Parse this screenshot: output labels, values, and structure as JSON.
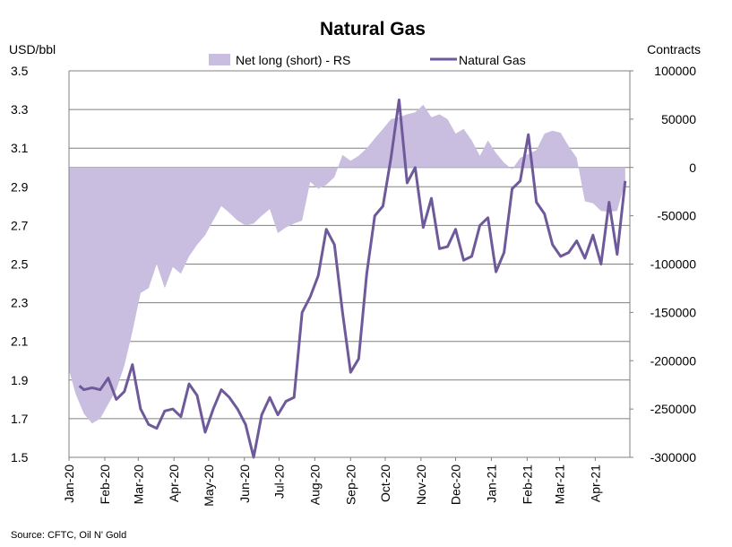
{
  "chart_data": {
    "type": "line",
    "title": "Natural Gas",
    "ylabel_left": "USD/bbl",
    "ylabel_right": "Contracts",
    "source": "Source: CFTC, Oil N' Gold",
    "ylim_left": [
      1.5,
      3.5
    ],
    "yticks_left": [
      "3.5",
      "3.3",
      "3.1",
      "2.9",
      "2.7",
      "2.5",
      "2.3",
      "2.1",
      "1.9",
      "1.7",
      "1.5"
    ],
    "ylim_right": [
      -300000,
      100000
    ],
    "yticks_right": [
      "100000",
      "50000",
      "0",
      "-50000",
      "-100000",
      "-150000",
      "-200000",
      "-250000",
      "-300000"
    ],
    "x_categories": [
      "Jan-20",
      "Feb-20",
      "Mar-20",
      "Apr-20",
      "May-20",
      "Jun-20",
      "Jul-20",
      "Aug-20",
      "Sep-20",
      "Oct-20",
      "Nov-20",
      "Dec-20",
      "Jan-21",
      "Feb-21",
      "Mar-21",
      "Apr-21"
    ],
    "grid": true,
    "legend_position": "top",
    "colors": {
      "area": "#c9bedf",
      "line": "#6e5a9a",
      "grid": "#808080"
    },
    "series": [
      {
        "name": "Net long (short) - RS",
        "type": "area",
        "axis": "right",
        "x": [
          "2020-01-01",
          "2020-01-07",
          "2020-01-14",
          "2020-01-21",
          "2020-01-28",
          "2020-02-04",
          "2020-02-11",
          "2020-02-18",
          "2020-02-25",
          "2020-03-03",
          "2020-03-10",
          "2020-03-17",
          "2020-03-24",
          "2020-03-31",
          "2020-04-07",
          "2020-04-14",
          "2020-04-21",
          "2020-04-28",
          "2020-05-05",
          "2020-05-12",
          "2020-05-19",
          "2020-05-26",
          "2020-06-02",
          "2020-06-09",
          "2020-06-16",
          "2020-06-23",
          "2020-06-30",
          "2020-07-07",
          "2020-07-14",
          "2020-07-21",
          "2020-07-28",
          "2020-08-04",
          "2020-08-11",
          "2020-08-18",
          "2020-08-25",
          "2020-09-01",
          "2020-09-08",
          "2020-09-15",
          "2020-09-22",
          "2020-09-29",
          "2020-10-06",
          "2020-10-13",
          "2020-10-20",
          "2020-10-27",
          "2020-11-03",
          "2020-11-10",
          "2020-11-17",
          "2020-11-24",
          "2020-12-01",
          "2020-12-08",
          "2020-12-15",
          "2020-12-22",
          "2020-12-29",
          "2021-01-05",
          "2021-01-12",
          "2021-01-19",
          "2021-01-26",
          "2021-02-02",
          "2021-02-09",
          "2021-02-16",
          "2021-02-23",
          "2021-03-02",
          "2021-03-09",
          "2021-03-16",
          "2021-03-23",
          "2021-03-30",
          "2021-04-06",
          "2021-04-13",
          "2021-04-20",
          "2021-04-27"
        ],
        "values": [
          -210000,
          -235000,
          -255000,
          -265000,
          -260000,
          -245000,
          -230000,
          -205000,
          -170000,
          -130000,
          -125000,
          -100000,
          -125000,
          -103000,
          -110000,
          -92000,
          -80000,
          -70000,
          -55000,
          -40000,
          -47000,
          -55000,
          -60000,
          -58000,
          -50000,
          -43000,
          -68000,
          -62000,
          -58000,
          -55000,
          -15000,
          -22000,
          -18000,
          -10000,
          13000,
          7000,
          12000,
          20000,
          30000,
          40000,
          50000,
          52000,
          55000,
          57000,
          65000,
          52000,
          55000,
          50000,
          35000,
          40000,
          28000,
          12000,
          28000,
          15000,
          5000,
          -2000,
          10000,
          14000,
          18000,
          35000,
          38000,
          36000,
          22000,
          10000,
          -35000,
          -37000,
          -45000,
          -46000,
          -45000,
          -15000
        ]
      },
      {
        "name": "Natural Gas",
        "type": "line",
        "axis": "left",
        "x": [
          "2020-01-10",
          "2020-01-14",
          "2020-01-21",
          "2020-01-28",
          "2020-02-04",
          "2020-02-11",
          "2020-02-18",
          "2020-02-25",
          "2020-03-03",
          "2020-03-10",
          "2020-03-17",
          "2020-03-24",
          "2020-03-31",
          "2020-04-07",
          "2020-04-14",
          "2020-04-21",
          "2020-04-28",
          "2020-05-05",
          "2020-05-12",
          "2020-05-19",
          "2020-05-26",
          "2020-06-02",
          "2020-06-09",
          "2020-06-16",
          "2020-06-23",
          "2020-06-30",
          "2020-07-07",
          "2020-07-14",
          "2020-07-21",
          "2020-07-28",
          "2020-08-04",
          "2020-08-11",
          "2020-08-18",
          "2020-08-25",
          "2020-09-01",
          "2020-09-08",
          "2020-09-15",
          "2020-09-22",
          "2020-09-29",
          "2020-10-06",
          "2020-10-13",
          "2020-10-20",
          "2020-10-27",
          "2020-11-03",
          "2020-11-10",
          "2020-11-17",
          "2020-11-24",
          "2020-12-01",
          "2020-12-08",
          "2020-12-15",
          "2020-12-22",
          "2020-12-29",
          "2021-01-05",
          "2021-01-12",
          "2021-01-19",
          "2021-01-26",
          "2021-02-02",
          "2021-02-09",
          "2021-02-16",
          "2021-02-23",
          "2021-03-02",
          "2021-03-09",
          "2021-03-16",
          "2021-03-23",
          "2021-03-30",
          "2021-04-06",
          "2021-04-13",
          "2021-04-20",
          "2021-04-27"
        ],
        "values": [
          1.87,
          1.85,
          1.86,
          1.85,
          1.91,
          1.8,
          1.84,
          1.98,
          1.75,
          1.67,
          1.65,
          1.74,
          1.75,
          1.71,
          1.88,
          1.82,
          1.63,
          1.75,
          1.85,
          1.81,
          1.75,
          1.67,
          1.5,
          1.72,
          1.81,
          1.72,
          1.79,
          1.81,
          2.25,
          2.33,
          2.44,
          2.68,
          2.6,
          2.25,
          1.94,
          2.01,
          2.45,
          2.75,
          2.8,
          3.05,
          3.35,
          2.92,
          3.0,
          2.69,
          2.84,
          2.58,
          2.59,
          2.68,
          2.52,
          2.54,
          2.7,
          2.74,
          2.46,
          2.56,
          2.89,
          2.93,
          3.17,
          2.82,
          2.76,
          2.6,
          2.54,
          2.56,
          2.62,
          2.53,
          2.65,
          2.5,
          2.82,
          2.55,
          2.93
        ]
      }
    ]
  }
}
